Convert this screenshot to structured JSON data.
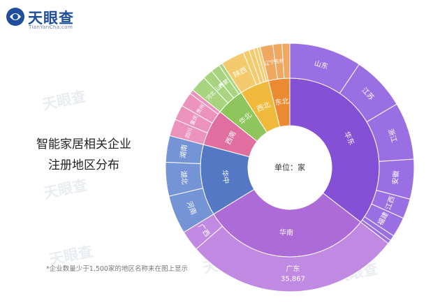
{
  "brand": {
    "name": "天眼查",
    "sub": "TianYanCha.com"
  },
  "watermark": "天眼查",
  "title_lines": [
    "智能家居相关企业",
    "注册地区分布"
  ],
  "note": "*企业数量少于1,500家的地区名称未在图上显示",
  "colors": {
    "华东": "#8451d6",
    "华南": "#ac6bd6",
    "华中": "#5578c4",
    "西南": "#e06fa0",
    "华北": "#8ec55d",
    "西北": "#efba3c",
    "东北": "#eb8a30"
  },
  "chart_data": {
    "type": "sunburst",
    "center_label": "单位：家",
    "regions": [
      {
        "name": "华东",
        "color": "#8451d6",
        "light": "#9b6fe4",
        "children": [
          {
            "name": "山东",
            "value": 12000
          },
          {
            "name": "江苏",
            "value": 9000
          },
          {
            "name": "浙江",
            "value": 9500
          },
          {
            "name": "安徽",
            "value": 6600
          },
          {
            "name": "江西",
            "value": 3300
          },
          {
            "name": "福建",
            "value": 3300
          },
          {
            "name": "",
            "value": 900
          },
          {
            "name": "",
            "value": 600
          }
        ]
      },
      {
        "name": "华南",
        "color": "#ac6bd6",
        "light": "#c08ae2",
        "children": [
          {
            "name": "广东",
            "value": 35867,
            "value_label": "35,867"
          },
          {
            "name": "广西",
            "value": 3400
          }
        ]
      },
      {
        "name": "华中",
        "color": "#5578c4",
        "light": "#7594d5",
        "children": [
          {
            "name": "河南",
            "value": 6400
          },
          {
            "name": "湖北",
            "value": 5600
          },
          {
            "name": "湖南",
            "value": 4400
          }
        ]
      },
      {
        "name": "西南",
        "color": "#e06fa0",
        "light": "#eb93bc",
        "children": [
          {
            "name": "四川",
            "value": 2800
          },
          {
            "name": "重庆",
            "value": 2500
          },
          {
            "name": "贵州",
            "value": 2400
          },
          {
            "name": "",
            "value": 700
          }
        ]
      },
      {
        "name": "华北",
        "color": "#8ec55d",
        "light": "#a8d47f",
        "children": [
          {
            "name": "河北",
            "value": 2700
          },
          {
            "name": "山西",
            "value": 1700
          },
          {
            "name": "内蒙古",
            "value": 1500
          },
          {
            "name": "",
            "value": 600
          }
        ]
      },
      {
        "name": "西北",
        "color": "#efba3c",
        "light": "#f3cb6c",
        "children": [
          {
            "name": "陕西",
            "value": 3900
          },
          {
            "name": "",
            "value": 1000
          },
          {
            "name": "",
            "value": 800
          },
          {
            "name": "",
            "value": 600
          },
          {
            "name": "",
            "value": 500
          }
        ]
      },
      {
        "name": "东北",
        "color": "#eb8a30",
        "light": "#f0a860",
        "children": [
          {
            "name": "辽宁",
            "value": 2100
          },
          {
            "name": "吉林",
            "value": 1500
          },
          {
            "name": "",
            "value": 1300
          }
        ]
      }
    ]
  }
}
